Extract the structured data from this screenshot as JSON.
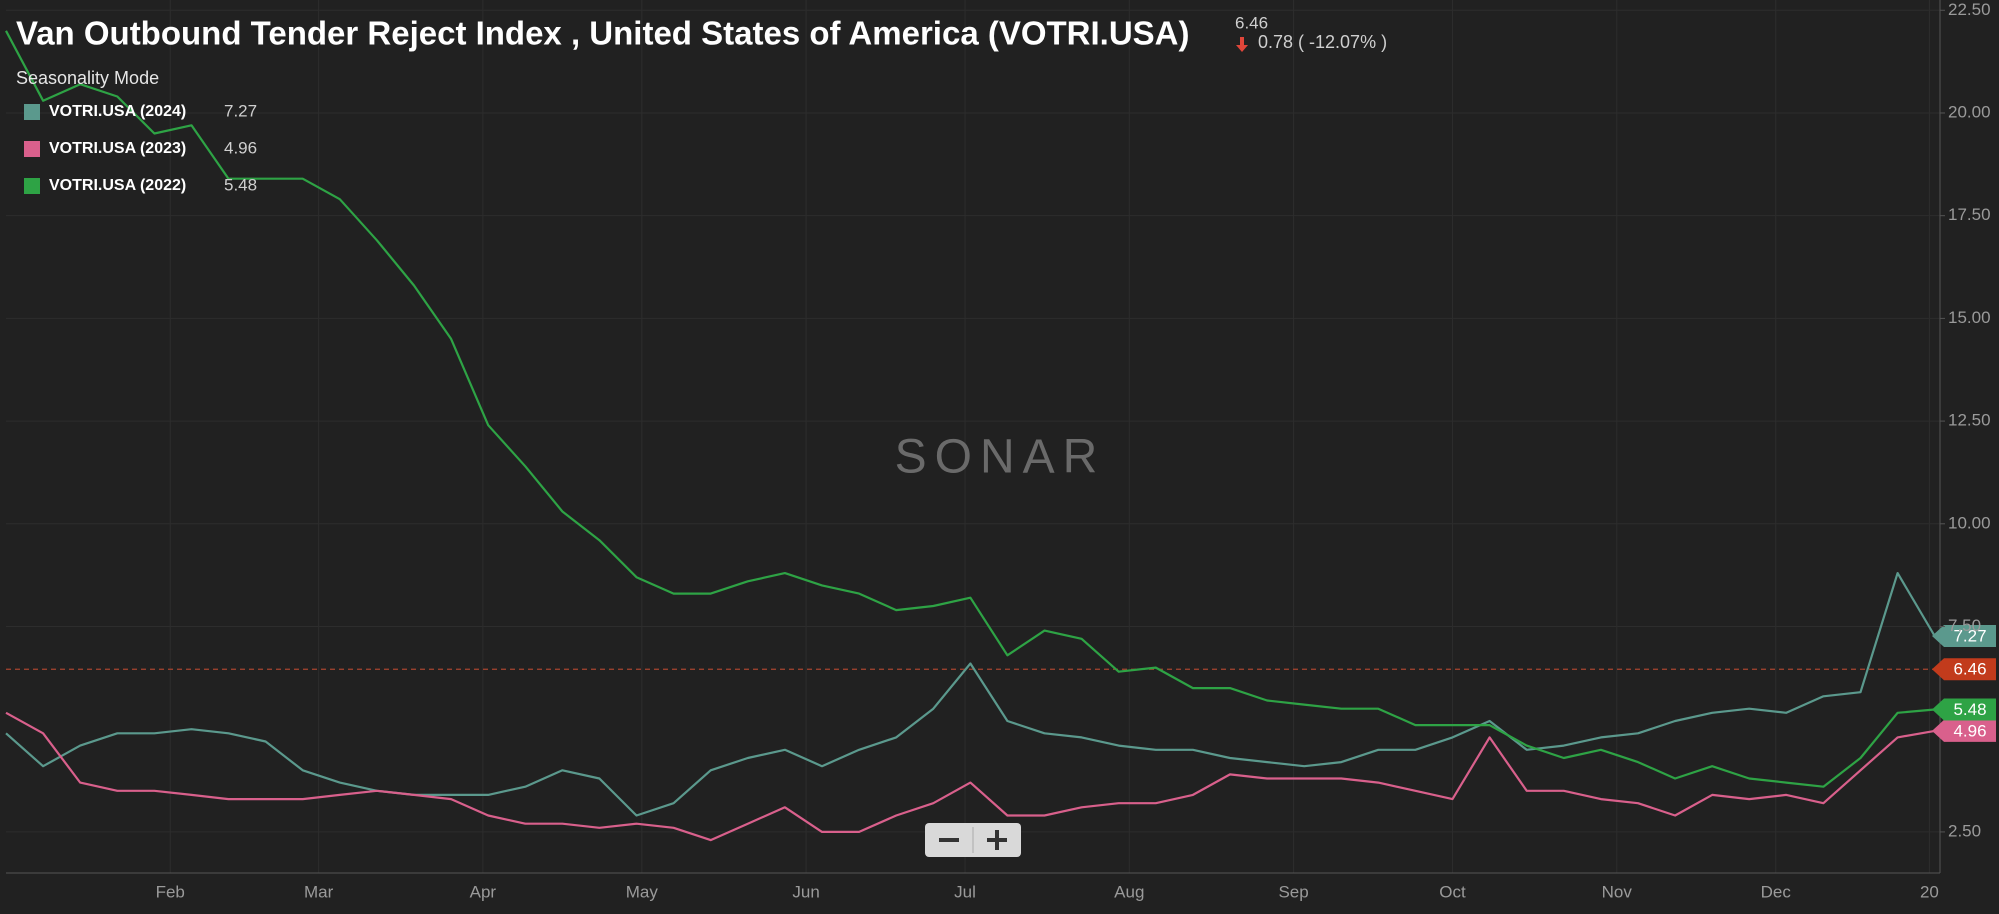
{
  "chart_data": {
    "type": "line",
    "title": "Van Outbound Tender Reject Index , United States of America (VOTRI.USA)",
    "last_value": 6.46,
    "change_label": "0.78 ( -12.07% )",
    "subtitle": "Seasonality Mode",
    "watermark": "SONAR",
    "x": [
      1,
      8,
      15,
      22,
      29,
      36,
      43,
      50,
      57,
      64,
      71,
      78,
      85,
      92,
      99,
      106,
      113,
      120,
      127,
      134,
      141,
      148,
      155,
      162,
      169,
      176,
      183,
      190,
      197,
      204,
      211,
      218,
      225,
      232,
      239,
      246,
      253,
      260,
      267,
      274,
      281,
      288,
      295,
      302,
      309,
      316,
      323,
      330,
      337,
      344,
      351,
      358,
      365
    ],
    "xlim": [
      1,
      366
    ],
    "xticks": [
      {
        "value": 32,
        "label": "Feb"
      },
      {
        "value": 60,
        "label": "Mar"
      },
      {
        "value": 91,
        "label": "Apr"
      },
      {
        "value": 121,
        "label": "May"
      },
      {
        "value": 152,
        "label": "Jun"
      },
      {
        "value": 182,
        "label": "Jul"
      },
      {
        "value": 213,
        "label": "Aug"
      },
      {
        "value": 244,
        "label": "Sep"
      },
      {
        "value": 274,
        "label": "Oct"
      },
      {
        "value": 305,
        "label": "Nov"
      },
      {
        "value": 335,
        "label": "Dec"
      },
      {
        "value": 364,
        "label": "20"
      }
    ],
    "ylim": [
      1.5,
      22.75
    ],
    "yticks": [
      {
        "value": 2.5,
        "label": "2.50"
      },
      {
        "value": 7.5,
        "label": "7.50"
      },
      {
        "value": 10,
        "label": "10.00"
      },
      {
        "value": 12.5,
        "label": "12.50"
      },
      {
        "value": 15,
        "label": "15.00"
      },
      {
        "value": 17.5,
        "label": "17.50"
      },
      {
        "value": 20,
        "label": "20.00"
      },
      {
        "value": 22.5,
        "label": "22.50"
      }
    ],
    "grid": true,
    "series": [
      {
        "name": "VOTRI.USA (2024)",
        "color": "#5b998d",
        "values": [
          4.9,
          4.1,
          4.6,
          4.9,
          4.9,
          5.0,
          4.9,
          4.7,
          4.0,
          3.7,
          3.5,
          3.4,
          3.4,
          3.4,
          3.6,
          4.0,
          3.8,
          2.9,
          3.2,
          4.0,
          4.3,
          4.5,
          4.1,
          4.5,
          4.8,
          5.5,
          6.6,
          5.2,
          4.9,
          4.8,
          4.6,
          4.5,
          4.5,
          4.3,
          4.2,
          4.1,
          4.2,
          4.5,
          4.5,
          4.8,
          5.2,
          4.5,
          4.6,
          4.8,
          4.9,
          5.2,
          5.4,
          5.5,
          5.4,
          5.8,
          5.9,
          8.8,
          7.27
        ]
      },
      {
        "name": "VOTRI.USA (2023)",
        "color": "#d9608c",
        "values": [
          5.4,
          4.9,
          3.7,
          3.5,
          3.5,
          3.4,
          3.3,
          3.3,
          3.3,
          3.4,
          3.5,
          3.4,
          3.3,
          2.9,
          2.7,
          2.7,
          2.6,
          2.7,
          2.6,
          2.3,
          2.7,
          3.1,
          2.5,
          2.5,
          2.9,
          3.2,
          3.7,
          2.9,
          2.9,
          3.1,
          3.2,
          3.2,
          3.4,
          3.9,
          3.8,
          3.8,
          3.8,
          3.7,
          3.5,
          3.3,
          4.8,
          3.5,
          3.5,
          3.3,
          3.2,
          2.9,
          3.4,
          3.3,
          3.4,
          3.2,
          4.0,
          4.8,
          4.96
        ]
      },
      {
        "name": "VOTRI.USA (2022)",
        "color": "#2ea345",
        "values": [
          22.0,
          20.3,
          20.7,
          20.4,
          19.5,
          19.7,
          18.4,
          18.4,
          18.4,
          17.9,
          16.9,
          15.8,
          14.5,
          12.4,
          11.4,
          10.3,
          9.6,
          8.7,
          8.3,
          8.3,
          8.6,
          8.8,
          8.5,
          8.3,
          7.9,
          8.0,
          8.2,
          6.8,
          7.4,
          7.2,
          6.4,
          6.5,
          6.0,
          6.0,
          5.7,
          5.6,
          5.5,
          5.5,
          5.1,
          5.1,
          5.1,
          4.6,
          4.3,
          4.5,
          4.2,
          3.8,
          4.1,
          3.8,
          3.7,
          3.6,
          4.3,
          5.4,
          5.48
        ]
      }
    ]
  }
}
